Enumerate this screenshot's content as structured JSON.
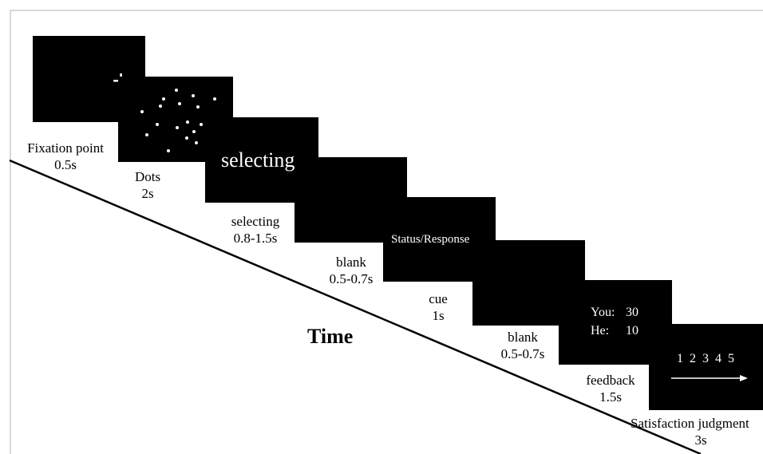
{
  "axis": {
    "time_label": "Time"
  },
  "colors": {
    "screen": "#000000",
    "screen_text": "#ffffff",
    "ink": "#000000"
  },
  "steps": [
    {
      "id": "fixation",
      "name": "Fixation point",
      "duration": "0.5s",
      "screen_content": "+"
    },
    {
      "id": "dots",
      "name": "Dots",
      "duration": "2s",
      "screen_content": "dots"
    },
    {
      "id": "selecting",
      "name": "selecting",
      "duration": "0.8-1.5s",
      "screen_text": "selecting"
    },
    {
      "id": "blank1",
      "name": "blank",
      "duration": "0.5-0.7s"
    },
    {
      "id": "cue",
      "name": "cue",
      "duration": "1s",
      "screen_text": "Status/Response"
    },
    {
      "id": "blank2",
      "name": "blank",
      "duration": "0.5-0.7s"
    },
    {
      "id": "feedback",
      "name": "feedback",
      "duration": "1.5s",
      "screen_lines": [
        {
          "who": "You:",
          "score": "30"
        },
        {
          "who": "He:",
          "score": "10"
        }
      ]
    },
    {
      "id": "satisfaction",
      "name": "Satisfaction judgment",
      "duration": "3s",
      "scale": "1 2 3 4 5"
    }
  ]
}
